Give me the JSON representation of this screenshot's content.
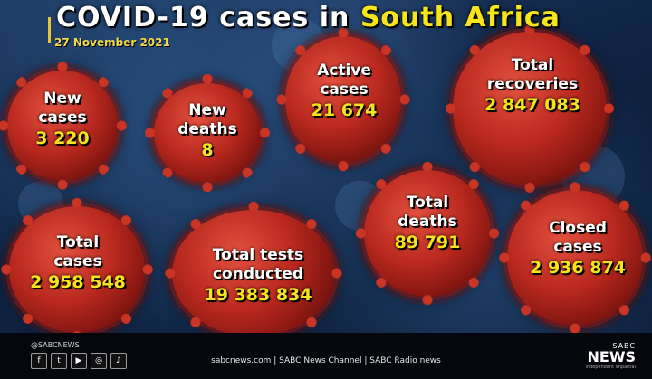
{
  "title": {
    "prefix": "COVID-19 cases in ",
    "highlight": "South Africa"
  },
  "date": "27 November 2021",
  "stats": [
    {
      "label": "New\ncases",
      "value": "3 220"
    },
    {
      "label": "New\ndeaths",
      "value": "8"
    },
    {
      "label": "Active\ncases",
      "value": "21 674"
    },
    {
      "label": "Total\nrecoveries",
      "value": "2 847 083"
    },
    {
      "label": "Total\ncases",
      "value": "2 958 548"
    },
    {
      "label": "Total tests\nconducted",
      "value": "19 383 834"
    },
    {
      "label": "Total\ndeaths",
      "value": "89 791"
    },
    {
      "label": "Closed\ncases",
      "value": "2 936 874"
    }
  ],
  "footer": {
    "handle": "@SABCNEWS",
    "channels": "sabcnews.com | SABC News Channel | SABC Radio news",
    "socials": [
      "facebook-icon",
      "twitter-icon",
      "youtube-icon",
      "instagram-icon",
      "tiktok-icon"
    ],
    "logo_top": "SABC",
    "logo_main": "NEWS",
    "logo_tag": "independent impartial"
  },
  "colors": {
    "accent": "#f6e619",
    "virus": "#b8281e",
    "background": "#0f2342"
  }
}
